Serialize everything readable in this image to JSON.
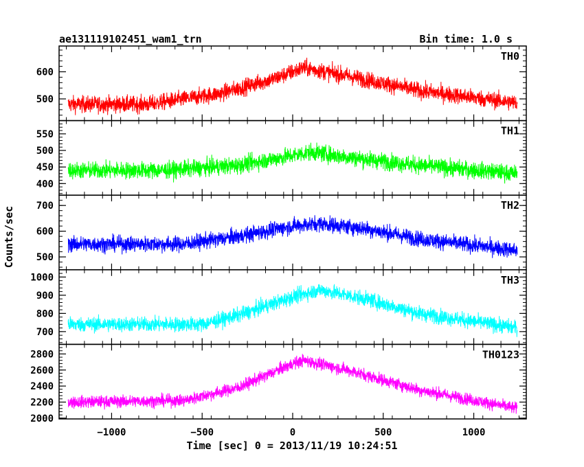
{
  "header": {
    "title": "ae131119102451_wam1_trn",
    "bin_time": "Bin time: 1.0 s"
  },
  "chart_data": {
    "type": "line",
    "xlabel": "Time [sec] 0 = 2013/11/19 10:24:51",
    "ylabel": "Counts/sec",
    "xlim": [
      -1290,
      1290
    ],
    "x_range": [
      -1240,
      1240
    ],
    "x_ticks": [
      -1000,
      -500,
      0,
      500,
      1000
    ],
    "x_tick_labels": [
      "−1000",
      "−500",
      "0",
      "500",
      "1000"
    ],
    "grid": false,
    "panels": [
      {
        "name": "TH0",
        "color": "#ff0000",
        "ylim": [
          420,
          695
        ],
        "y_ticks": [
          500,
          600
        ],
        "y_tick_labels": [
          "500",
          "600"
        ],
        "profile": [
          [
            -1240,
            480
          ],
          [
            -800,
            480
          ],
          [
            -400,
            520
          ],
          [
            -100,
            575
          ],
          [
            0,
            600
          ],
          [
            60,
            615
          ],
          [
            300,
            585
          ],
          [
            700,
            530
          ],
          [
            1240,
            485
          ]
        ],
        "noise": 30
      },
      {
        "name": "TH1",
        "color": "#00ff00",
        "ylim": [
          365,
          590
        ],
        "y_ticks": [
          400,
          450,
          500,
          550
        ],
        "y_tick_labels": [
          "400",
          "450",
          "500",
          "550"
        ],
        "profile": [
          [
            -1240,
            440
          ],
          [
            -700,
            440
          ],
          [
            -300,
            455
          ],
          [
            0,
            485
          ],
          [
            100,
            495
          ],
          [
            300,
            480
          ],
          [
            700,
            455
          ],
          [
            1240,
            430
          ]
        ],
        "noise": 25
      },
      {
        "name": "TH2",
        "color": "#0000ff",
        "ylim": [
          450,
          740
        ],
        "y_ticks": [
          500,
          600,
          700
        ],
        "y_tick_labels": [
          "500",
          "600",
          "700"
        ],
        "profile": [
          [
            -1240,
            550
          ],
          [
            -600,
            550
          ],
          [
            -300,
            580
          ],
          [
            0,
            620
          ],
          [
            150,
            630
          ],
          [
            400,
            610
          ],
          [
            700,
            570
          ],
          [
            1240,
            525
          ]
        ],
        "noise": 30
      },
      {
        "name": "TH3",
        "color": "#00ffff",
        "ylim": [
          630,
          1040
        ],
        "y_ticks": [
          700,
          800,
          900,
          1000
        ],
        "y_tick_labels": [
          "700",
          "800",
          "900",
          "1000"
        ],
        "profile": [
          [
            -1240,
            740
          ],
          [
            -500,
            740
          ],
          [
            -300,
            790
          ],
          [
            0,
            890
          ],
          [
            150,
            930
          ],
          [
            400,
            880
          ],
          [
            700,
            800
          ],
          [
            1240,
            720
          ]
        ],
        "noise": 40
      },
      {
        "name": "TH0123",
        "color": "#ff00ff",
        "ylim": [
          1990,
          2920
        ],
        "y_ticks": [
          2000,
          2200,
          2400,
          2600,
          2800
        ],
        "y_tick_labels": [
          "2000",
          "2200",
          "2400",
          "2600",
          "2800"
        ],
        "profile": [
          [
            -1240,
            2200
          ],
          [
            -600,
            2220
          ],
          [
            -300,
            2380
          ],
          [
            0,
            2680
          ],
          [
            60,
            2720
          ],
          [
            300,
            2600
          ],
          [
            700,
            2350
          ],
          [
            1240,
            2120
          ]
        ],
        "noise": 75
      }
    ]
  }
}
